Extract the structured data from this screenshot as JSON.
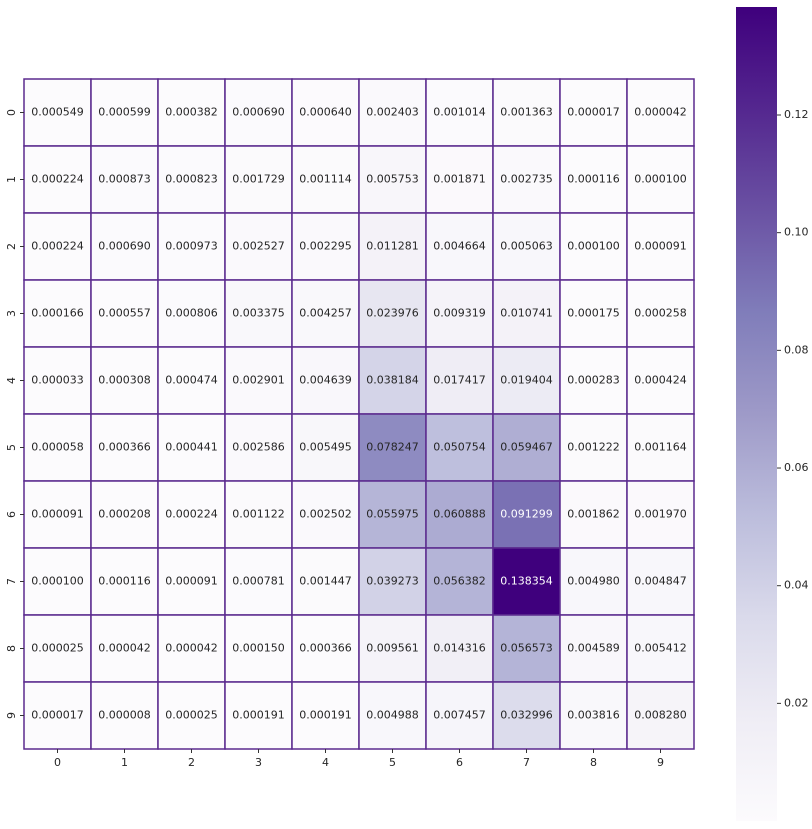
{
  "chart_data": {
    "type": "heatmap",
    "x_categories": [
      "0",
      "1",
      "2",
      "3",
      "4",
      "5",
      "6",
      "7",
      "8",
      "9"
    ],
    "y_categories": [
      "0",
      "1",
      "2",
      "3",
      "4",
      "5",
      "6",
      "7",
      "8",
      "9"
    ],
    "values": [
      [
        0.000549,
        0.000599,
        0.000382,
        0.00069,
        0.00064,
        0.002403,
        0.001014,
        0.001363,
        1.7e-05,
        4.2e-05
      ],
      [
        0.000224,
        0.000873,
        0.000823,
        0.001729,
        0.001114,
        0.005753,
        0.001871,
        0.002735,
        0.000116,
        0.0001
      ],
      [
        0.000224,
        0.00069,
        0.000973,
        0.002527,
        0.002295,
        0.011281,
        0.004664,
        0.005063,
        0.0001,
        9.1e-05
      ],
      [
        0.000166,
        0.000557,
        0.000806,
        0.003375,
        0.004257,
        0.023976,
        0.009319,
        0.010741,
        0.000175,
        0.000258
      ],
      [
        3.3e-05,
        0.000308,
        0.000474,
        0.002901,
        0.004639,
        0.038184,
        0.017417,
        0.019404,
        0.000283,
        0.000424
      ],
      [
        5.8e-05,
        0.000366,
        0.000441,
        0.002586,
        0.005495,
        0.078247,
        0.050754,
        0.059467,
        0.001222,
        0.001164
      ],
      [
        9.1e-05,
        0.000208,
        0.000224,
        0.001122,
        0.002502,
        0.055975,
        0.060888,
        0.091299,
        0.001862,
        0.00197
      ],
      [
        0.0001,
        0.000116,
        9.1e-05,
        0.000781,
        0.001447,
        0.039273,
        0.056382,
        0.138354,
        0.00498,
        0.004847
      ],
      [
        2.5e-05,
        4.2e-05,
        4.2e-05,
        0.00015,
        0.000366,
        0.009561,
        0.014316,
        0.056573,
        0.004589,
        0.005412
      ],
      [
        1.7e-05,
        8e-06,
        2.5e-05,
        0.000191,
        0.000191,
        0.004988,
        0.007457,
        0.032996,
        0.003816,
        0.00828
      ]
    ],
    "value_labels": [
      [
        "0.000549",
        "0.000599",
        "0.000382",
        "0.000690",
        "0.000640",
        "0.002403",
        "0.001014",
        "0.001363",
        "0.000017",
        "0.000042"
      ],
      [
        "0.000224",
        "0.000873",
        "0.000823",
        "0.001729",
        "0.001114",
        "0.005753",
        "0.001871",
        "0.002735",
        "0.000116",
        "0.000100"
      ],
      [
        "0.000224",
        "0.000690",
        "0.000973",
        "0.002527",
        "0.002295",
        "0.011281",
        "0.004664",
        "0.005063",
        "0.000100",
        "0.000091"
      ],
      [
        "0.000166",
        "0.000557",
        "0.000806",
        "0.003375",
        "0.004257",
        "0.023976",
        "0.009319",
        "0.010741",
        "0.000175",
        "0.000258"
      ],
      [
        "0.000033",
        "0.000308",
        "0.000474",
        "0.002901",
        "0.004639",
        "0.038184",
        "0.017417",
        "0.019404",
        "0.000283",
        "0.000424"
      ],
      [
        "0.000058",
        "0.000366",
        "0.000441",
        "0.002586",
        "0.005495",
        "0.078247",
        "0.050754",
        "0.059467",
        "0.001222",
        "0.001164"
      ],
      [
        "0.000091",
        "0.000208",
        "0.000224",
        "0.001122",
        "0.002502",
        "0.055975",
        "0.060888",
        "0.091299",
        "0.001862",
        "0.001970"
      ],
      [
        "0.000100",
        "0.000116",
        "0.000091",
        "0.000781",
        "0.001447",
        "0.039273",
        "0.056382",
        "0.138354",
        "0.004980",
        "0.004847"
      ],
      [
        "0.000025",
        "0.000042",
        "0.000042",
        "0.000150",
        "0.000366",
        "0.009561",
        "0.014316",
        "0.056573",
        "0.004589",
        "0.005412"
      ],
      [
        "0.000017",
        "0.000008",
        "0.000025",
        "0.000191",
        "0.000191",
        "0.004988",
        "0.007457",
        "0.032996",
        "0.003816",
        "0.008280"
      ]
    ],
    "colormap": "Purples",
    "clim": [
      8e-06,
      0.138354
    ],
    "cticks": [
      0.02,
      0.04,
      0.06,
      0.08,
      {
        "value": 0.1,
        "label": "0.10"
      },
      0.12
    ],
    "cell_border_color": "#5b2a8e"
  }
}
